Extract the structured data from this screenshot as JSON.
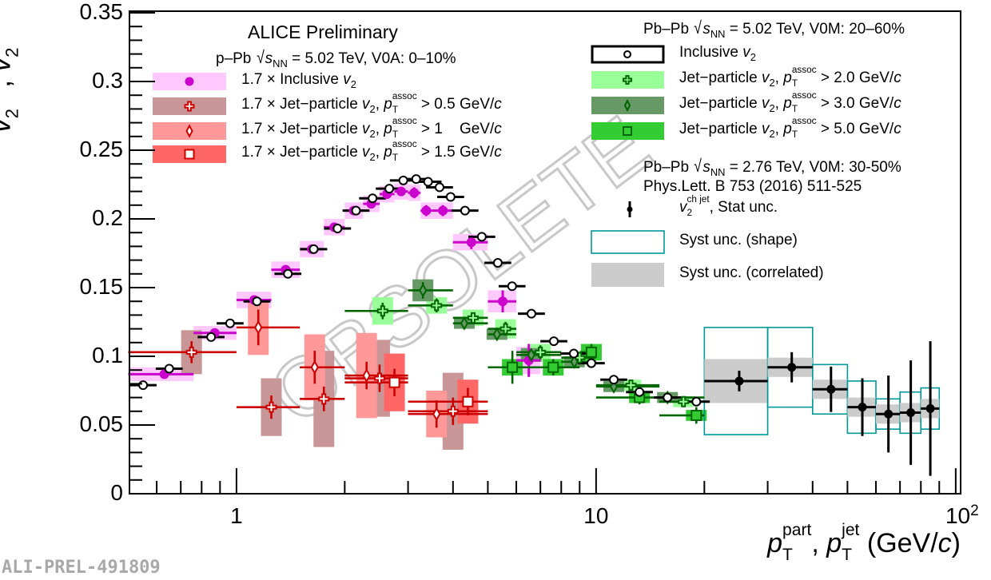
{
  "chart_data": {
    "type": "scatter",
    "xscale": "log",
    "xlim": [
      0.504,
      103.2
    ],
    "ylim": [
      0,
      0.35
    ],
    "yticks": [
      "0",
      "0.05",
      "0.1",
      "0.15",
      "0.2",
      "0.25",
      "0.3",
      "0.35"
    ],
    "xticks": [
      {
        "v": 1,
        "label": "1"
      },
      {
        "v": 10,
        "label": "10"
      },
      {
        "v": 100,
        "label": "10",
        "sup": "2"
      }
    ],
    "ylabel": [
      {
        "t": "v",
        "f": "i"
      },
      {
        "sup": "part",
        "sub": "2",
        "f": "ss"
      },
      {
        "t": ", ",
        "f": ""
      },
      {
        "t": "v",
        "f": "i"
      },
      {
        "sup": "jet",
        "sub": "2",
        "f": "ss"
      }
    ],
    "xlabel": [
      {
        "t": "p",
        "f": "i"
      },
      {
        "sup": "part",
        "sub": "T",
        "f": "ss"
      },
      {
        "t": ", ",
        "f": ""
      },
      {
        "t": "p",
        "f": "i"
      },
      {
        "sup": "jet",
        "sub": "T",
        "f": "ss"
      },
      {
        "t": " (GeV/",
        "f": ""
      },
      {
        "t": "c",
        "f": "i"
      },
      {
        "t": ")",
        "f": ""
      }
    ],
    "watermark": "OBSOLETE",
    "series": [
      {
        "name": "1.7 × Inclusive v2 (p–Pb)",
        "marker": "circle-filled",
        "color": "#cc00cc",
        "box": "#ffc8ff",
        "boxmode": "bin",
        "points": [
          [
            0.63,
            0.5,
            0.76,
            0.087,
            0.002,
            0.005
          ],
          [
            0.87,
            0.76,
            1.0,
            0.117,
            0.002,
            0.005
          ],
          [
            1.12,
            1.0,
            1.25,
            0.141,
            0.002,
            0.006
          ],
          [
            1.37,
            1.25,
            1.5,
            0.163,
            0.002,
            0.006
          ],
          [
            1.62,
            1.5,
            1.75,
            0.178,
            0.002,
            0.006
          ],
          [
            1.87,
            1.75,
            2.0,
            0.194,
            0.002,
            0.006
          ],
          [
            2.12,
            2.0,
            2.25,
            0.206,
            0.002,
            0.006
          ],
          [
            2.37,
            2.25,
            2.5,
            0.211,
            0.003,
            0.006
          ],
          [
            2.62,
            2.5,
            2.75,
            0.218,
            0.003,
            0.006
          ],
          [
            2.87,
            2.75,
            3.0,
            0.22,
            0.003,
            0.006
          ],
          [
            3.12,
            3.0,
            3.25,
            0.219,
            0.004,
            0.006
          ],
          [
            3.37,
            3.25,
            3.5,
            0.206,
            0.004,
            0.006
          ],
          [
            3.75,
            3.5,
            4.0,
            0.206,
            0.004,
            0.006
          ],
          [
            4.5,
            4.0,
            5.0,
            0.183,
            0.005,
            0.006
          ],
          [
            5.5,
            5.0,
            6.0,
            0.14,
            0.008,
            0.008
          ],
          [
            6.5,
            6.0,
            7.0,
            0.097,
            0.012,
            0.01
          ]
        ]
      },
      {
        "name": "1.7 × Jet-particle v2, pT assoc > 0.5 GeV/c (p–Pb)",
        "marker": "cross-open",
        "color": "#cc0000",
        "box": "#c89696",
        "boxmode": "narrow",
        "points": [
          [
            0.75,
            0.5,
            1.0,
            0.103,
            0.008,
            0.016
          ],
          [
            1.25,
            1.0,
            1.5,
            0.063,
            0.0085,
            0.021
          ],
          [
            1.75,
            1.5,
            2.0,
            0.069,
            0.009,
            0.035
          ],
          [
            2.5,
            2.0,
            3.0,
            0.084,
            0.01,
            0.028
          ],
          [
            4.0,
            3.0,
            5.0,
            0.06,
            0.01,
            0.028
          ]
        ]
      },
      {
        "name": "1.7 × Jet-particle v2, pT assoc > 1 GeV/c (p–Pb)",
        "marker": "diamond-open",
        "color": "#cc0000",
        "box": "#ff9999",
        "boxmode": "narrow",
        "points": [
          [
            1.15,
            1.0,
            1.5,
            0.121,
            0.013,
            0.02
          ],
          [
            1.65,
            1.5,
            2.0,
            0.092,
            0.012,
            0.024
          ],
          [
            2.3,
            2.0,
            3.0,
            0.086,
            0.01,
            0.031
          ],
          [
            3.6,
            3.0,
            5.0,
            0.058,
            0.01,
            0.017
          ]
        ]
      },
      {
        "name": "1.7 × Jet-particle v2, pT assoc > 1.5 GeV/c (p–Pb)",
        "marker": "square-open",
        "color": "#cc0000",
        "box": "#ff6666",
        "boxmode": "narrow",
        "points": [
          [
            2.75,
            2.0,
            3.0,
            0.081,
            0.01,
            0.021
          ],
          [
            4.4,
            3.0,
            5.0,
            0.067,
            0.01,
            0.016
          ]
        ]
      },
      {
        "name": "Jet-particle v2, pT assoc > 2.0 GeV/c (Pb–Pb)",
        "marker": "cross-open",
        "color": "#006600",
        "fill": "#99ff99",
        "box": "#99ff99",
        "boxmode": "narrow",
        "points": [
          [
            2.55,
            2.0,
            3.0,
            0.133,
            0.006,
            0.01
          ],
          [
            3.6,
            3.0,
            4.0,
            0.137,
            0.005,
            0.006
          ],
          [
            4.55,
            4.0,
            5.0,
            0.128,
            0.004,
            0.006
          ],
          [
            5.6,
            5.0,
            6.0,
            0.12,
            0.005,
            0.007
          ],
          [
            7.0,
            6.0,
            8.0,
            0.103,
            0.005,
            0.006
          ],
          [
            9.0,
            8.0,
            10.0,
            0.099,
            0.004,
            0.005
          ],
          [
            12.5,
            10.0,
            15.0,
            0.079,
            0.004,
            0.004
          ],
          [
            17.5,
            15.0,
            20.0,
            0.067,
            0.004,
            0.004
          ]
        ]
      },
      {
        "name": "Jet-particle v2, pT assoc > 3.0 GeV/c (Pb–Pb)",
        "marker": "diamond-open",
        "color": "#006600",
        "fill": "#669966",
        "box": "#669966",
        "boxmode": "narrow",
        "points": [
          [
            3.3,
            3.0,
            4.0,
            0.148,
            0.006,
            0.008
          ],
          [
            4.3,
            4.0,
            5.0,
            0.124,
            0.004,
            0.004
          ],
          [
            5.3,
            5.0,
            6.0,
            0.116,
            0.004,
            0.004
          ],
          [
            6.6,
            6.0,
            8.0,
            0.101,
            0.004,
            0.005
          ],
          [
            8.7,
            8.0,
            10.0,
            0.096,
            0.004,
            0.004
          ],
          [
            11.2,
            10.0,
            15.0,
            0.078,
            0.004,
            0.004
          ],
          [
            15.8,
            15.0,
            20.0,
            0.07,
            0.004,
            0.004
          ]
        ]
      },
      {
        "name": "Jet-particle v2, pT assoc > 5.0 GeV/c (Pb–Pb)",
        "marker": "square-open",
        "color": "#006600",
        "fill": "#33cc33",
        "box": "#33cc33",
        "boxmode": "narrow",
        "points": [
          [
            5.85,
            5.0,
            7.0,
            0.092,
            0.012,
            0.006
          ],
          [
            7.6,
            7.0,
            9.0,
            0.092,
            0.006,
            0.006
          ],
          [
            9.7,
            9.0,
            10.0,
            0.103,
            0.006,
            0.006
          ],
          [
            13.2,
            10.0,
            15.0,
            0.07,
            0.005,
            0.004
          ],
          [
            19.0,
            15.0,
            20.0,
            0.057,
            0.006,
            0.004
          ]
        ]
      },
      {
        "name": "Inclusive v2 (Pb–Pb)",
        "marker": "circle-open",
        "color": "#000000",
        "points": [
          [
            0.55,
            0.079
          ],
          [
            0.65,
            0.091
          ],
          [
            0.85,
            0.114
          ],
          [
            0.96,
            0.124
          ],
          [
            1.14,
            0.14
          ],
          [
            1.39,
            0.16
          ],
          [
            1.64,
            0.178
          ],
          [
            1.91,
            0.193
          ],
          [
            2.15,
            0.206
          ],
          [
            2.39,
            0.215
          ],
          [
            2.66,
            0.222
          ],
          [
            2.91,
            0.228
          ],
          [
            3.16,
            0.229
          ],
          [
            3.41,
            0.227
          ],
          [
            3.67,
            0.223
          ],
          [
            3.94,
            0.216
          ],
          [
            4.32,
            0.206
          ],
          [
            4.81,
            0.187
          ],
          [
            5.33,
            0.168
          ],
          [
            5.84,
            0.151
          ],
          [
            6.61,
            0.131
          ],
          [
            7.63,
            0.111
          ],
          [
            8.67,
            0.102
          ],
          [
            9.7,
            0.095
          ],
          [
            11.2,
            0.083
          ],
          [
            13.2,
            0.074
          ],
          [
            15.8,
            0.07
          ],
          [
            19.0,
            0.067
          ]
        ]
      },
      {
        "name": "v2 ch jet (Pb–Pb 2.76 TeV)",
        "marker": "dot",
        "color": "#000000",
        "shape_color": "#009999",
        "corr_color": "#cccccc",
        "points": [
          [
            25,
            20,
            30,
            0.082,
            0.0075,
            0.039,
            0.016
          ],
          [
            35,
            30,
            40,
            0.092,
            0.011,
            0.029,
            0.007
          ],
          [
            45,
            40,
            50,
            0.076,
            0.0165,
            0.018,
            0.007
          ],
          [
            55,
            50,
            60,
            0.063,
            0.021,
            0.019,
            0.007
          ],
          [
            65,
            60,
            70,
            0.058,
            0.028,
            0.011,
            0.007
          ],
          [
            75,
            70,
            80,
            0.059,
            0.038,
            0.015,
            0.007
          ],
          [
            85,
            80,
            90,
            0.062,
            0.049,
            0.015,
            0.007
          ]
        ]
      }
    ]
  },
  "texts": {
    "alice": [
      {
        "t": "ALICE Preliminary",
        "f": ""
      }
    ],
    "ppb_header": [
      {
        "t": "p–Pb ",
        "f": ""
      },
      {
        "t": "√",
        "f": "sqrt"
      },
      {
        "t": "s",
        "f": "i"
      },
      {
        "t": "NN",
        "f": "sub"
      },
      {
        "t": " = 5.02 TeV, V0A: 0–10%",
        "f": ""
      }
    ],
    "pbpb_header": [
      {
        "t": "Pb–Pb ",
        "f": ""
      },
      {
        "t": "√",
        "f": "sqrt"
      },
      {
        "t": "s",
        "f": "i"
      },
      {
        "t": "NN",
        "f": "sub"
      },
      {
        "t": " = 5.02 TeV, V0M: 20–60%",
        "f": ""
      }
    ],
    "pbpb276_header": [
      {
        "t": "Pb–Pb ",
        "f": ""
      },
      {
        "t": "√",
        "f": "sqrt"
      },
      {
        "t": "s",
        "f": "i"
      },
      {
        "t": "NN",
        "f": "sub"
      },
      {
        "t": " = 2.76 TeV, V0M: 30-50%",
        "f": ""
      }
    ],
    "reference": [
      {
        "t": "Phys.Lett. B 753 (2016) 511-525",
        "f": ""
      }
    ],
    "ali_id": "ALI-PREL-491809"
  },
  "legend_left": [
    {
      "series": 0,
      "label": [
        {
          "t": "1.7 × Inclusive ",
          "f": ""
        },
        {
          "t": "v",
          "f": "i"
        },
        {
          "t": "2",
          "f": "sub"
        }
      ]
    },
    {
      "series": 1,
      "label": [
        {
          "t": "1.7 × Jet−particle ",
          "f": ""
        },
        {
          "t": "v",
          "f": "i"
        },
        {
          "t": "2",
          "f": "sub"
        },
        {
          "t": ", ",
          "f": ""
        },
        {
          "t": "p",
          "f": "i"
        },
        {
          "sup": "assoc",
          "sub": "T",
          "f": "ss"
        },
        {
          "t": " > 0.5 GeV/",
          "f": ""
        },
        {
          "t": "c",
          "f": "i"
        }
      ]
    },
    {
      "series": 2,
      "label": [
        {
          "t": "1.7 × Jet−particle ",
          "f": ""
        },
        {
          "t": "v",
          "f": "i"
        },
        {
          "t": "2",
          "f": "sub"
        },
        {
          "t": ", ",
          "f": ""
        },
        {
          "t": "p",
          "f": "i"
        },
        {
          "sup": "assoc",
          "sub": "T",
          "f": "ss"
        },
        {
          "t": " > 1    GeV/",
          "f": ""
        },
        {
          "t": "c",
          "f": "i"
        }
      ]
    },
    {
      "series": 3,
      "label": [
        {
          "t": "1.7 × Jet−particle ",
          "f": ""
        },
        {
          "t": "v",
          "f": "i"
        },
        {
          "t": "2",
          "f": "sub"
        },
        {
          "t": ", ",
          "f": ""
        },
        {
          "t": "p",
          "f": "i"
        },
        {
          "sup": "assoc",
          "sub": "T",
          "f": "ss"
        },
        {
          "t": " > 1.5 GeV/",
          "f": ""
        },
        {
          "t": "c",
          "f": "i"
        }
      ]
    }
  ],
  "legend_right": [
    {
      "series": 7,
      "label": [
        {
          "t": "Inclusive ",
          "f": ""
        },
        {
          "t": "v",
          "f": "i"
        },
        {
          "t": "2",
          "f": "sub"
        }
      ]
    },
    {
      "series": 4,
      "label": [
        {
          "t": "Jet−particle ",
          "f": ""
        },
        {
          "t": "v",
          "f": "i"
        },
        {
          "t": "2",
          "f": "sub"
        },
        {
          "t": ", ",
          "f": ""
        },
        {
          "t": "p",
          "f": "i"
        },
        {
          "sup": "assoc",
          "sub": "T",
          "f": "ss"
        },
        {
          "t": " > 2.0 GeV/",
          "f": ""
        },
        {
          "t": "c",
          "f": "i"
        }
      ]
    },
    {
      "series": 5,
      "label": [
        {
          "t": "Jet−particle ",
          "f": ""
        },
        {
          "t": "v",
          "f": "i"
        },
        {
          "t": "2",
          "f": "sub"
        },
        {
          "t": ", ",
          "f": ""
        },
        {
          "t": "p",
          "f": "i"
        },
        {
          "sup": "assoc",
          "sub": "T",
          "f": "ss"
        },
        {
          "t": " > 3.0 GeV/",
          "f": ""
        },
        {
          "t": "c",
          "f": "i"
        }
      ]
    },
    {
      "series": 6,
      "label": [
        {
          "t": "Jet−particle ",
          "f": ""
        },
        {
          "t": "v",
          "f": "i"
        },
        {
          "t": "2",
          "f": "sub"
        },
        {
          "t": ", ",
          "f": ""
        },
        {
          "t": "p",
          "f": "i"
        },
        {
          "sup": "assoc",
          "sub": "T",
          "f": "ss"
        },
        {
          "t": " > 5.0 GeV/",
          "f": ""
        },
        {
          "t": "c",
          "f": "i"
        }
      ]
    }
  ],
  "legend_jet": [
    {
      "kind": "stat",
      "label": [
        {
          "t": "v",
          "f": "i"
        },
        {
          "sup": "ch jet",
          "sub": "2",
          "f": "ss"
        },
        {
          "t": ", Stat unc.",
          "f": ""
        }
      ]
    },
    {
      "kind": "shape",
      "label": [
        {
          "t": "Syst unc. (shape)",
          "f": ""
        }
      ]
    },
    {
      "kind": "corr",
      "label": [
        {
          "t": "Syst unc. (correlated)",
          "f": ""
        }
      ]
    }
  ]
}
